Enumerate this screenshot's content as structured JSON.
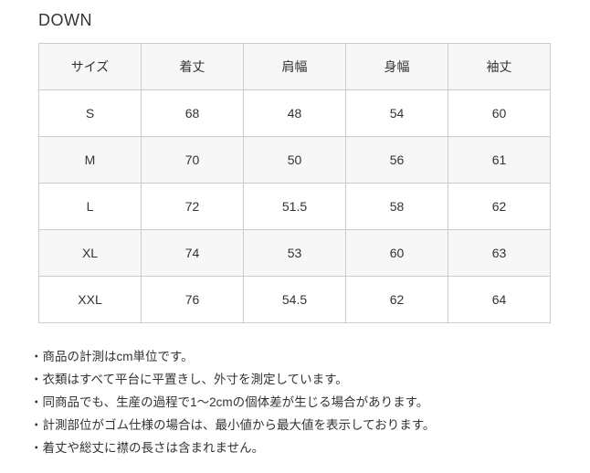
{
  "page": {
    "title": "DOWN"
  },
  "size_chart": {
    "columns": [
      "サイズ",
      "着丈",
      "肩幅",
      "身幅",
      "袖丈"
    ],
    "rows": [
      [
        "S",
        "68",
        "48",
        "54",
        "60"
      ],
      [
        "M",
        "70",
        "50",
        "56",
        "61"
      ],
      [
        "L",
        "72",
        "51.5",
        "58",
        "62"
      ],
      [
        "XL",
        "74",
        "53",
        "60",
        "63"
      ],
      [
        "XXL",
        "76",
        "54.5",
        "62",
        "64"
      ]
    ]
  },
  "notes": [
    "・商品の計測はcm単位です。",
    "・衣類はすべて平台に平置きし、外寸を測定しています。",
    "・同商品でも、生産の過程で1～2cmの個体差が生じる場合があります。",
    "・計測部位がゴム仕様の場合は、最小値から最大値を表示しております。",
    "・着丈や総丈に襟の長さは含まれません。"
  ],
  "colors": {
    "header_background": "#f7f7f7",
    "zebra_row_background": "#f7f7f7",
    "table_border": "#cccccc",
    "text": "#333333",
    "page_background": "#ffffff"
  }
}
